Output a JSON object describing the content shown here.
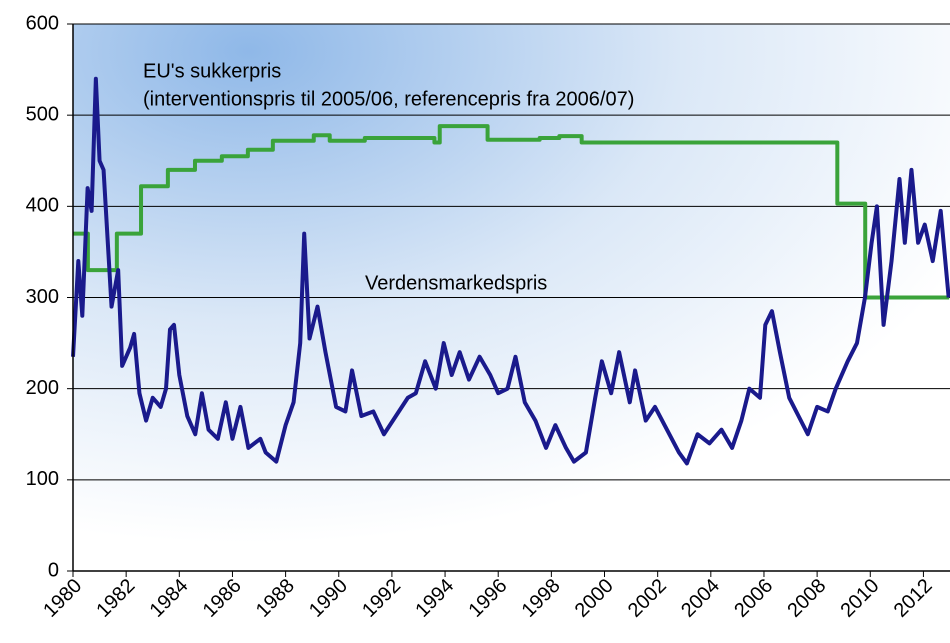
{
  "chart_data": {
    "type": "line",
    "annotations": [
      "EU's sukkerpris",
      "(interventionspris til 2005/06, referencepris fra 2006/07)",
      "Verdensmarkedspris"
    ],
    "xlim": [
      1980,
      2013
    ],
    "xticks": [
      1980,
      1982,
      1984,
      1986,
      1988,
      1990,
      1992,
      1994,
      1996,
      1998,
      2000,
      2002,
      2004,
      2006,
      2008,
      2010,
      2012
    ],
    "ylim": [
      0,
      600
    ],
    "yticks": [
      0,
      100,
      200,
      300,
      400,
      500,
      600
    ],
    "grid": true,
    "series": [
      {
        "name": "EU's sukkerpris",
        "color": "#3aa33a",
        "x": [
          1980,
          1980.56,
          1980.56,
          1981.65,
          1981.65,
          1982.56,
          1982.56,
          1983.57,
          1983.57,
          1984.59,
          1984.59,
          1985.6,
          1985.6,
          1986.58,
          1986.58,
          1987.52,
          1987.52,
          1989.06,
          1989.06,
          1989.66,
          1989.66,
          1990.98,
          1990.98,
          1993.6,
          1993.6,
          1993.8,
          1993.8,
          1995.6,
          1995.6,
          1997.56,
          1997.56,
          1998.3,
          1998.3,
          1999.14,
          1999.14,
          2008.76,
          2008.76,
          2009.81,
          2009.81,
          2012.97
        ],
        "values": [
          370,
          370,
          330,
          330,
          370,
          370,
          422,
          422,
          440,
          440,
          450,
          450,
          455,
          455,
          462,
          462,
          472,
          472,
          478,
          478,
          472,
          472,
          475,
          475,
          470,
          470,
          488,
          488,
          473,
          473,
          475,
          475,
          477,
          477,
          470,
          470,
          403,
          403,
          300,
          300
        ]
      },
      {
        "name": "Verdensmarkedspris",
        "color": "#1a1a8c",
        "x": [
          1980.0,
          1980.2,
          1980.35,
          1980.55,
          1980.7,
          1980.86,
          1981.0,
          1981.15,
          1981.45,
          1981.7,
          1981.85,
          1982.15,
          1982.3,
          1982.5,
          1982.75,
          1983.0,
          1983.3,
          1983.5,
          1983.65,
          1983.8,
          1984.0,
          1984.3,
          1984.6,
          1984.85,
          1985.1,
          1985.45,
          1985.75,
          1986.0,
          1986.3,
          1986.6,
          1987.05,
          1987.25,
          1987.65,
          1988.0,
          1988.3,
          1988.55,
          1988.7,
          1988.9,
          1989.2,
          1989.5,
          1989.9,
          1990.25,
          1990.5,
          1990.85,
          1991.3,
          1991.7,
          1992.15,
          1992.6,
          1992.9,
          1993.25,
          1993.65,
          1993.95,
          1994.25,
          1994.55,
          1994.9,
          1995.3,
          1995.7,
          1996.0,
          1996.35,
          1996.65,
          1997.0,
          1997.4,
          1997.8,
          1998.15,
          1998.55,
          1998.85,
          1999.3,
          1999.65,
          1999.9,
          2000.25,
          2000.55,
          2000.95,
          2001.15,
          2001.55,
          2001.9,
          2002.35,
          2002.8,
          2003.1,
          2003.5,
          2003.95,
          2004.4,
          2004.8,
          2005.15,
          2005.45,
          2005.85,
          2006.05,
          2006.3,
          2006.6,
          2006.95,
          2007.3,
          2007.65,
          2008.0,
          2008.4,
          2008.7,
          2009.15,
          2009.5,
          2009.8,
          2010.05,
          2010.25,
          2010.5,
          2010.8,
          2011.1,
          2011.3,
          2011.55,
          2011.8,
          2012.05,
          2012.35,
          2012.65,
          2012.95
        ],
        "values": [
          235,
          340,
          280,
          420,
          395,
          540,
          450,
          440,
          290,
          330,
          225,
          245,
          260,
          195,
          165,
          190,
          180,
          200,
          265,
          270,
          215,
          170,
          150,
          195,
          155,
          145,
          185,
          145,
          180,
          135,
          145,
          130,
          120,
          160,
          185,
          250,
          370,
          255,
          290,
          240,
          180,
          175,
          220,
          170,
          175,
          150,
          170,
          190,
          195,
          230,
          200,
          250,
          215,
          240,
          210,
          235,
          215,
          195,
          200,
          235,
          185,
          165,
          135,
          160,
          135,
          120,
          130,
          190,
          230,
          195,
          240,
          185,
          220,
          165,
          180,
          155,
          130,
          118,
          150,
          140,
          155,
          135,
          165,
          200,
          190,
          270,
          285,
          240,
          190,
          170,
          150,
          180,
          175,
          200,
          230,
          250,
          300,
          360,
          400,
          270,
          340,
          430,
          360,
          440,
          360,
          380,
          340,
          395,
          300
        ]
      }
    ]
  }
}
